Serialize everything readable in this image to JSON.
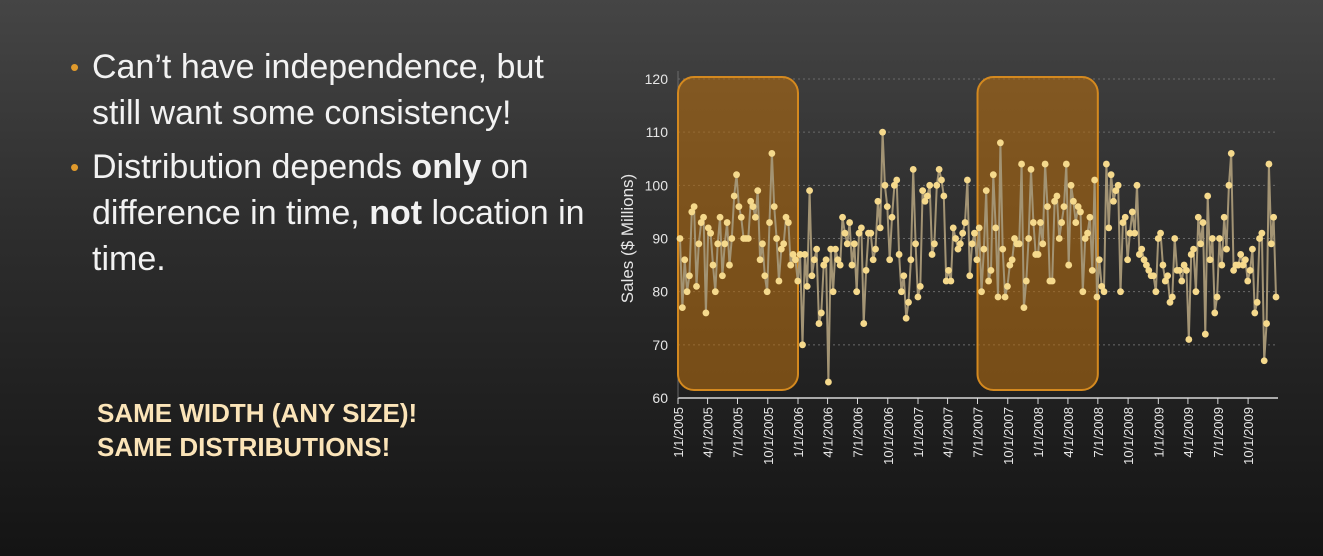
{
  "bullets": [
    {
      "parts": [
        {
          "t": "Can’t have independence, but still want some consistency!",
          "b": false
        }
      ]
    },
    {
      "parts": [
        {
          "t": "Distribution depends ",
          "b": false
        },
        {
          "t": "only",
          "b": true
        },
        {
          "t": " on difference in time, ",
          "b": false
        },
        {
          "t": "not",
          "b": true
        },
        {
          "t": " location in time.",
          "b": false
        }
      ]
    }
  ],
  "callout": {
    "line1": "SAME WIDTH (ANY SIZE)!",
    "line2": "SAME DISTRIBUTIONS!"
  },
  "colors": {
    "series": "#f5d98c",
    "line": "#a39474",
    "highlight": "#b06a10",
    "highlight_border": "#d4891f",
    "bullet": "#e09a2c"
  },
  "chart_data": {
    "type": "line",
    "title": "",
    "xlabel": "",
    "ylabel": "Sales  ($ Millions)",
    "ylim": [
      60,
      120
    ],
    "yticks": [
      60,
      70,
      80,
      90,
      100,
      110,
      120
    ],
    "grid": true,
    "x_start": "1/1/2005",
    "x_end": "12/31/2009",
    "xticks": [
      "1/1/2005",
      "4/1/2005",
      "7/1/2005",
      "10/1/2005",
      "1/1/2006",
      "4/1/2006",
      "7/1/2006",
      "10/1/2006",
      "1/1/2007",
      "4/1/2007",
      "7/1/2007",
      "10/1/2007",
      "1/1/2008",
      "4/1/2008",
      "7/1/2008",
      "10/1/2008",
      "1/1/2009",
      "4/1/2009",
      "7/1/2009",
      "10/1/2009"
    ],
    "highlight_windows": [
      [
        "1/1/2005",
        "1/1/2006"
      ],
      [
        "7/1/2007",
        "7/1/2008"
      ]
    ],
    "values": [
      90,
      77,
      86,
      80,
      83,
      95,
      96,
      81,
      89,
      93,
      94,
      76,
      92,
      91,
      85,
      80,
      89,
      94,
      83,
      89,
      93,
      85,
      90,
      98,
      102,
      96,
      94,
      90,
      90,
      90,
      97,
      96,
      94,
      99,
      86,
      89,
      83,
      80,
      93,
      106,
      96,
      90,
      82,
      88,
      89,
      94,
      93,
      85,
      87,
      86,
      82,
      87,
      70,
      87,
      81,
      99,
      83,
      86,
      88,
      74,
      76,
      85,
      86,
      63,
      88,
      80,
      88,
      86,
      85,
      94,
      91,
      89,
      93,
      85,
      89,
      80,
      91,
      92,
      74,
      84,
      91,
      91,
      86,
      88,
      97,
      92,
      110,
      100,
      96,
      86,
      94,
      100,
      101,
      87,
      80,
      83,
      75,
      78,
      86,
      103,
      89,
      79,
      81,
      99,
      97,
      98,
      100,
      87,
      89,
      100,
      103,
      101,
      98,
      82,
      84,
      82,
      92,
      90,
      88,
      89,
      91,
      93,
      101,
      83,
      89,
      91,
      86,
      92,
      80,
      88,
      99,
      82,
      84,
      102,
      92,
      79,
      108,
      88,
      79,
      81,
      85,
      86,
      90,
      89,
      89,
      104,
      77,
      82,
      90,
      103,
      93,
      87,
      87,
      93,
      89,
      104,
      96,
      82,
      82,
      97,
      98,
      90,
      93,
      96,
      104,
      85,
      100,
      97,
      93,
      96,
      95,
      80,
      90,
      91,
      94,
      84,
      101,
      79,
      86,
      81,
      80,
      104,
      92,
      102,
      97,
      99,
      100,
      80,
      93,
      94,
      86,
      91,
      95,
      91,
      100,
      87,
      88,
      86,
      85,
      84,
      83,
      83,
      80,
      90,
      91,
      85,
      82,
      83,
      78,
      79,
      90,
      84,
      84,
      82,
      85,
      84,
      71,
      87,
      88,
      80,
      94,
      89,
      93,
      72,
      98,
      86,
      90,
      76,
      79,
      90,
      85,
      94,
      88,
      100,
      106,
      84,
      85,
      85,
      87,
      85,
      86,
      82,
      84,
      88,
      76,
      78,
      90,
      91,
      67,
      74,
      104,
      89,
      94,
      79
    ]
  }
}
